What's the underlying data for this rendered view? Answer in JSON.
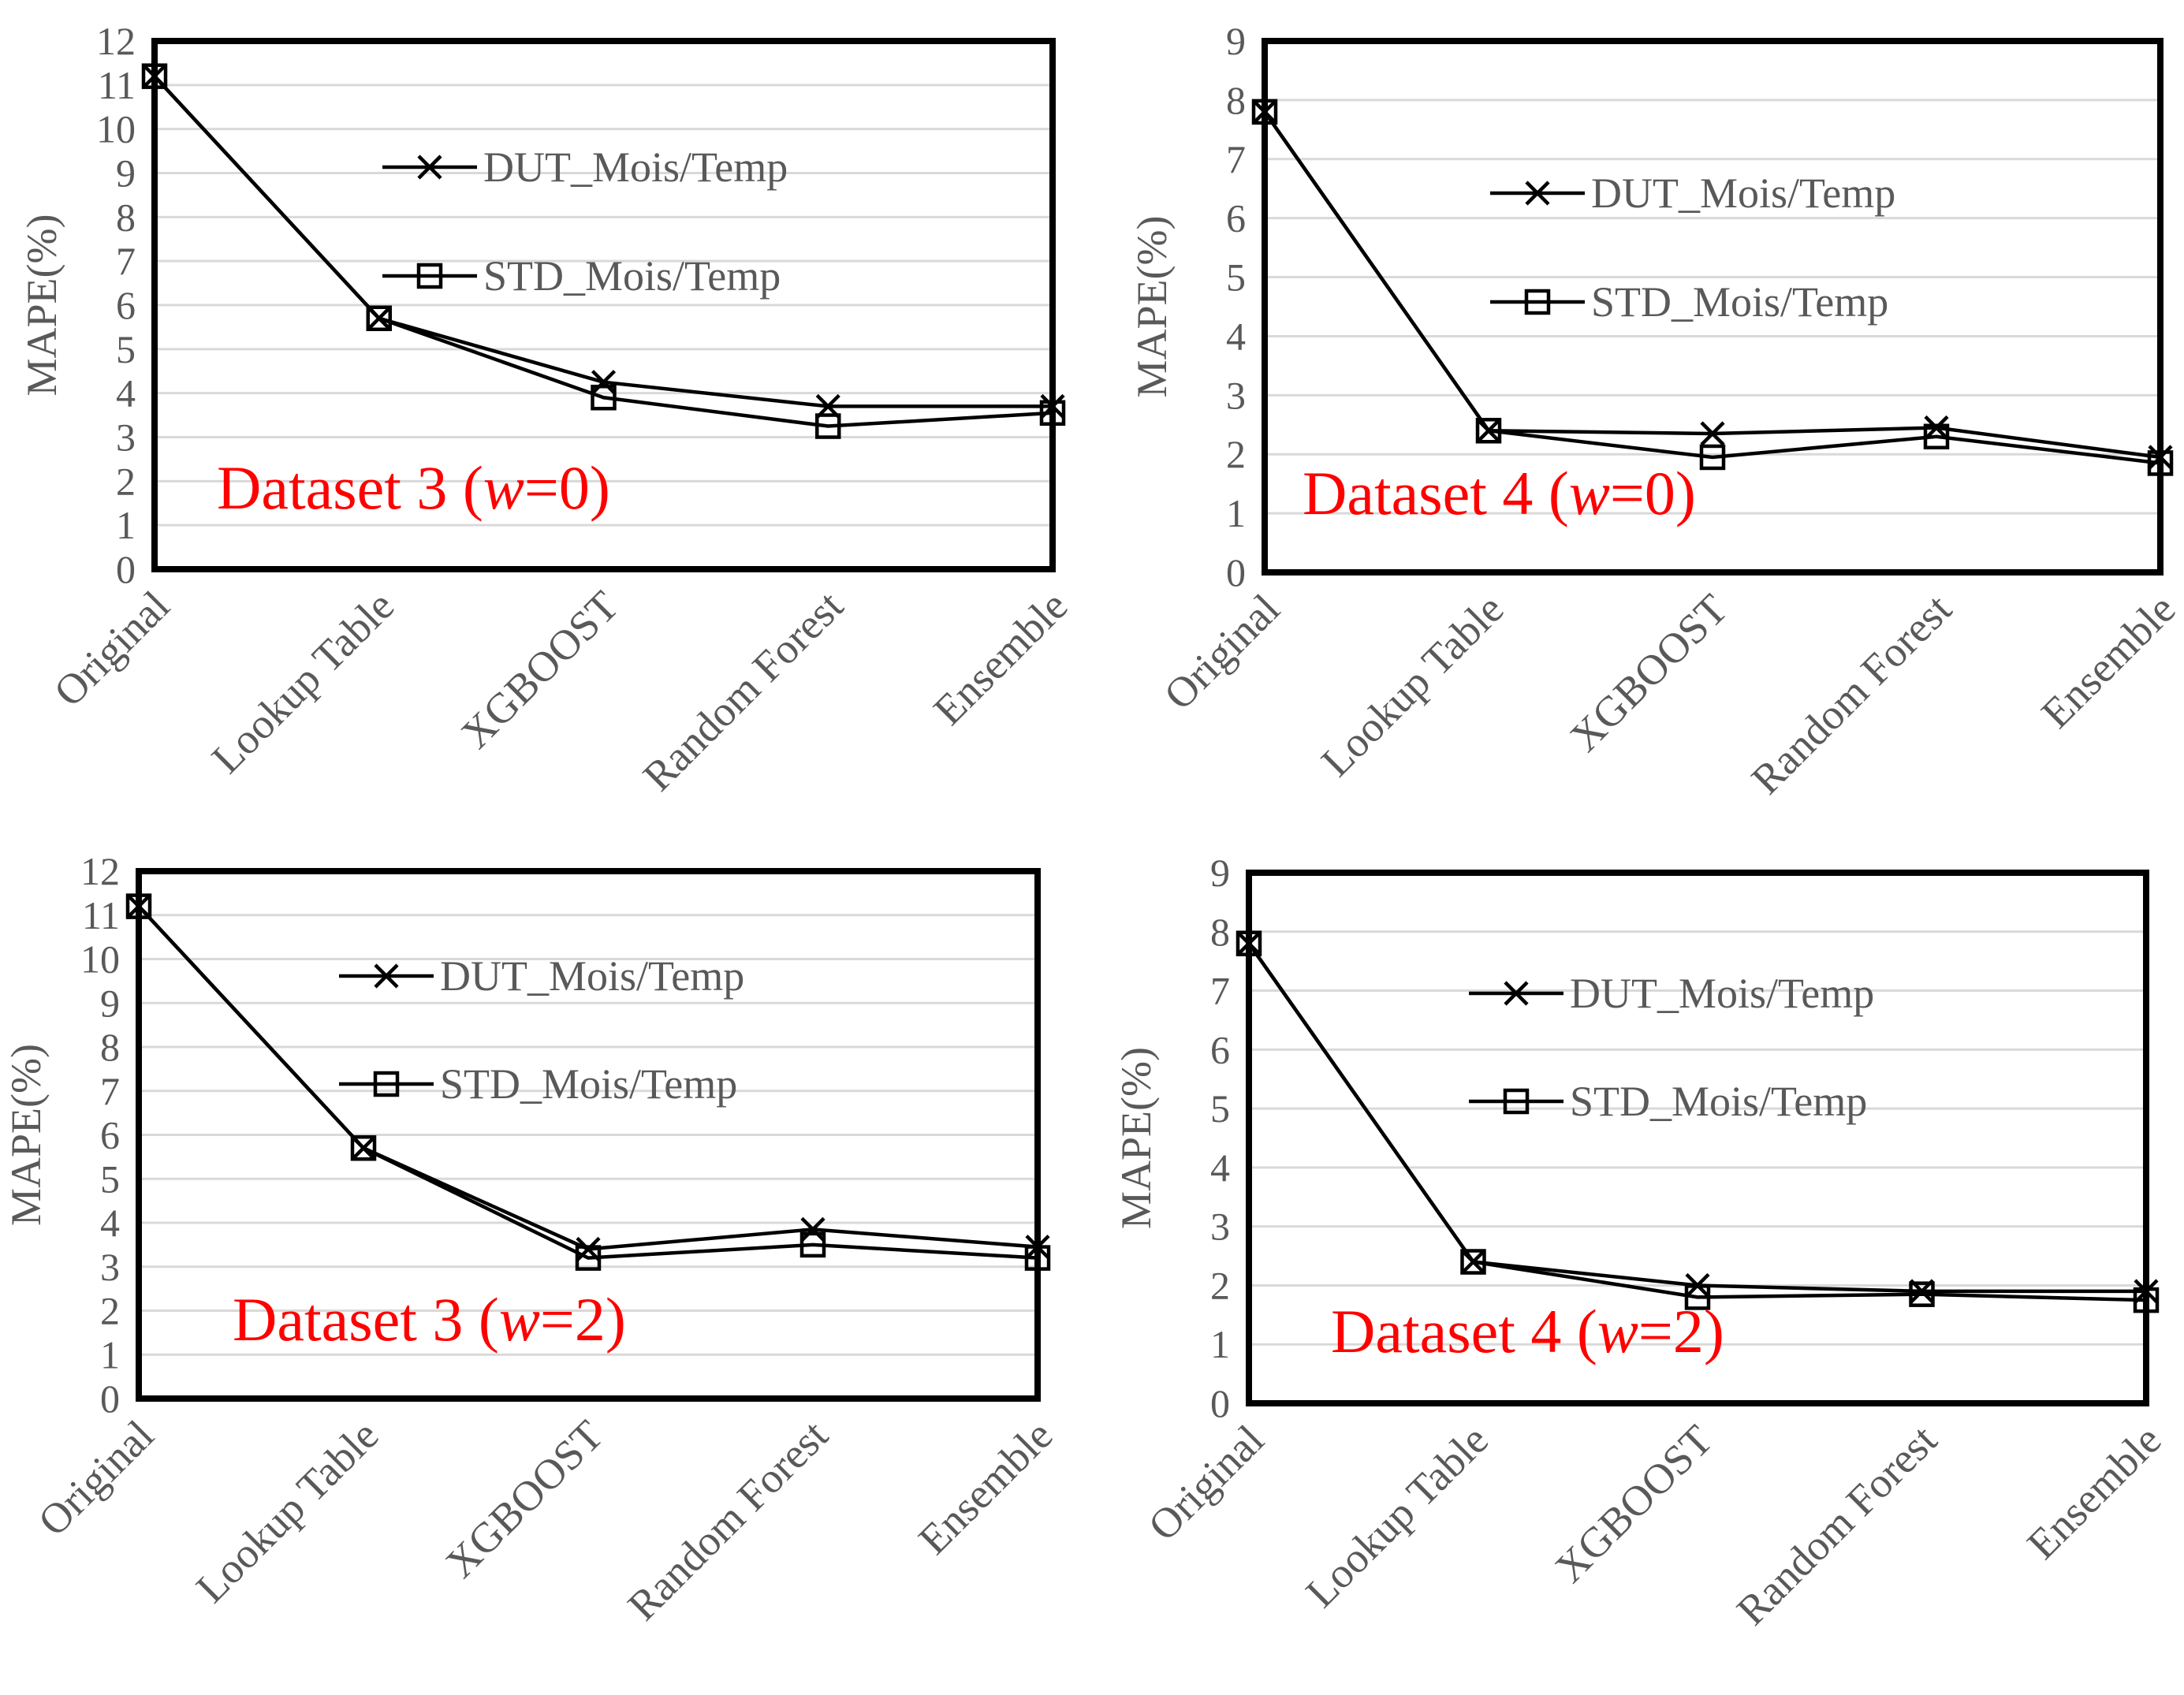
{
  "chart_data": [
    {
      "type": "line",
      "title": "Dataset 3 (w=0)",
      "title_parts": [
        "Dataset 3 (",
        "w",
        "=0)"
      ],
      "ylabel": "MAPE(%)",
      "xlabel": "",
      "ylim": [
        0,
        12
      ],
      "yticks": [
        "0",
        "1",
        "2",
        "3",
        "4",
        "5",
        "6",
        "7",
        "8",
        "9",
        "10",
        "11",
        "12"
      ],
      "categories": [
        "Original",
        "Lookup Table",
        "XGBOOST",
        "Random Forest",
        "Ensemble"
      ],
      "legend_position": "top-right",
      "grid": true,
      "series": [
        {
          "name": "DUT_Mois/Temp",
          "marker": "x",
          "values": [
            11.2,
            5.7,
            4.25,
            3.7,
            3.7
          ]
        },
        {
          "name": "STD_Mois/Temp",
          "marker": "square",
          "values": [
            11.2,
            5.7,
            3.9,
            3.25,
            3.55
          ]
        }
      ]
    },
    {
      "type": "line",
      "title": "Dataset 4 (w=0)",
      "title_parts": [
        "Dataset 4 (",
        "w",
        "=0)"
      ],
      "ylabel": "MAPE(%)",
      "xlabel": "",
      "ylim": [
        0,
        9
      ],
      "yticks": [
        "0",
        "1",
        "2",
        "3",
        "4",
        "5",
        "6",
        "7",
        "8",
        "9"
      ],
      "categories": [
        "Original",
        "Lookup Table",
        "XGBOOST",
        "Random Forest",
        "Ensemble"
      ],
      "legend_position": "top-right",
      "grid": true,
      "series": [
        {
          "name": "DUT_Mois/Temp",
          "marker": "x",
          "values": [
            7.8,
            2.4,
            2.35,
            2.45,
            1.95
          ]
        },
        {
          "name": "STD_Mois/Temp",
          "marker": "square",
          "values": [
            7.8,
            2.4,
            1.95,
            2.3,
            1.85
          ]
        }
      ]
    },
    {
      "type": "line",
      "title": "Dataset 3 (w=2)",
      "title_parts": [
        "Dataset 3 (",
        "w",
        "=2)"
      ],
      "ylabel": "MAPE(%)",
      "xlabel": "",
      "ylim": [
        0,
        12
      ],
      "yticks": [
        "0",
        "1",
        "2",
        "3",
        "4",
        "5",
        "6",
        "7",
        "8",
        "9",
        "10",
        "11",
        "12"
      ],
      "categories": [
        "Original",
        "Lookup Table",
        "XGBOOST",
        "Random Forest",
        "Ensemble"
      ],
      "legend_position": "top-right",
      "grid": true,
      "series": [
        {
          "name": "DUT_Mois/Temp",
          "marker": "x",
          "values": [
            11.2,
            5.7,
            3.4,
            3.85,
            3.45
          ]
        },
        {
          "name": "STD_Mois/Temp",
          "marker": "square",
          "values": [
            11.2,
            5.7,
            3.2,
            3.5,
            3.2
          ]
        }
      ]
    },
    {
      "type": "line",
      "title": "Dataset 4 (w=2)",
      "title_parts": [
        "Dataset 4 (",
        "w",
        "=2)"
      ],
      "ylabel": "MAPE(%)",
      "xlabel": "",
      "ylim": [
        0,
        9
      ],
      "yticks": [
        "0",
        "1",
        "2",
        "3",
        "4",
        "5",
        "6",
        "7",
        "8",
        "9"
      ],
      "categories": [
        "Original",
        "Lookup Table",
        "XGBOOST",
        "Random Forest",
        "Ensemble"
      ],
      "legend_position": "top-right",
      "grid": true,
      "series": [
        {
          "name": "DUT_Mois/Temp",
          "marker": "x",
          "values": [
            7.8,
            2.4,
            2.0,
            1.9,
            1.9
          ]
        },
        {
          "name": "STD_Mois/Temp",
          "marker": "square",
          "values": [
            7.8,
            2.4,
            1.8,
            1.85,
            1.75
          ]
        }
      ]
    }
  ]
}
